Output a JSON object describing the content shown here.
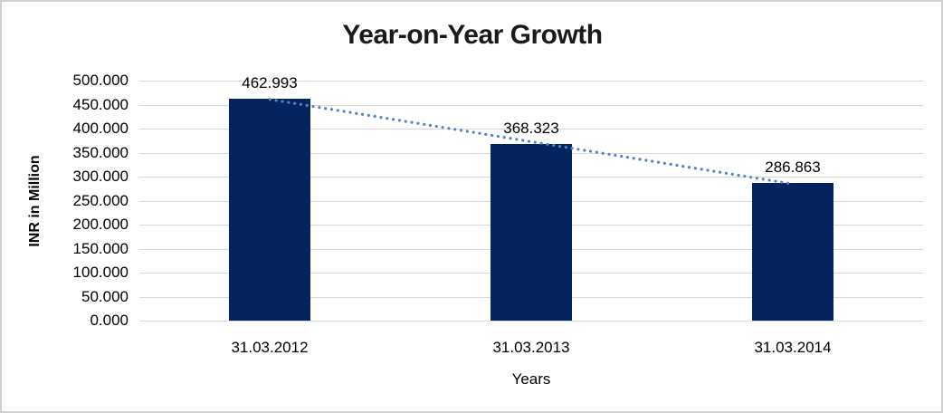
{
  "chart_data": {
    "type": "bar",
    "title": "Year-on-Year Growth",
    "xlabel": "Years",
    "ylabel": "INR in Million",
    "categories": [
      "31.03.2012",
      "31.03.2013",
      "31.03.2014"
    ],
    "values": [
      462.993,
      368.323,
      286.863
    ],
    "value_labels": [
      "462.993",
      "368.323",
      "286.863"
    ],
    "ylim": [
      0,
      500
    ],
    "ytick_step": 50,
    "ytick_labels": [
      "0.000",
      "50.000",
      "100.000",
      "150.000",
      "200.000",
      "250.000",
      "300.000",
      "350.000",
      "400.000",
      "450.000",
      "500.000"
    ],
    "grid": true,
    "legend": "none",
    "trendline": {
      "fit": "linear",
      "style": "dotted",
      "start_value": 460.8,
      "end_value": 284.7
    },
    "colors": {
      "bar": "#05235f",
      "gridline": "#d9d9d9",
      "trendline": "#4f86c6",
      "title_text": "#1a1a1a",
      "axis_text": "#000000",
      "border": "#cfcfcf",
      "background": "#ffffff"
    }
  }
}
